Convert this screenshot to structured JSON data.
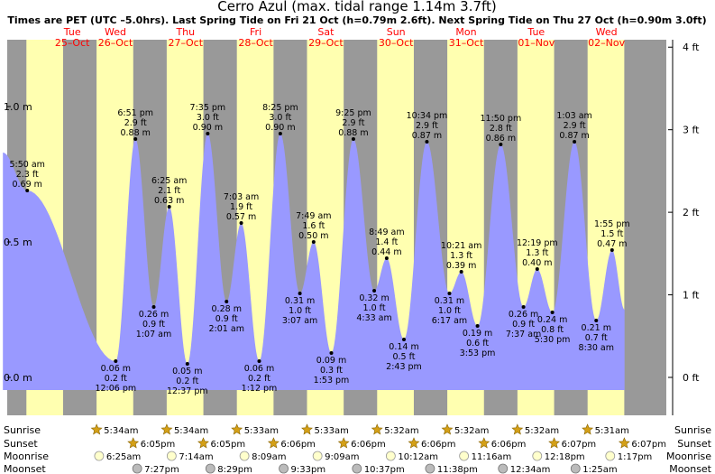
{
  "title": "Cerro Azul (max. tidal range 1.14m 3.7ft)",
  "subtitle": "Times are PET (UTC –5.0hrs). Last Spring Tide on Fri 21 Oct (h=0.79m 2.6ft). Next Spring Tide on Thu 27 Oct (h=0.90m 3.0ft)",
  "colors": {
    "night": "#999999",
    "day": "#ffffb0",
    "tide_fill": "#9999ff",
    "date_text": "#ff0000",
    "label_text": "#000000"
  },
  "days": [
    {
      "dow": "Tue",
      "date": "25–Oct"
    },
    {
      "dow": "Wed",
      "date": "26–Oct"
    },
    {
      "dow": "Thu",
      "date": "27–Oct"
    },
    {
      "dow": "Fri",
      "date": "28–Oct"
    },
    {
      "dow": "Sat",
      "date": "29–Oct"
    },
    {
      "dow": "Sun",
      "date": "30–Oct"
    },
    {
      "dow": "Mon",
      "date": "31–Oct"
    },
    {
      "dow": "Tue",
      "date": "01–Nov"
    },
    {
      "dow": "Wed",
      "date": "02–Nov"
    }
  ],
  "chart_data": {
    "type": "area",
    "title": "Cerro Azul (max. tidal range 1.14m 3.7ft)",
    "y_left_ticks": [
      "0.0 m",
      "0.5 m",
      "1.0 m"
    ],
    "y_left_tick_values": [
      0.0,
      0.5,
      1.0
    ],
    "y_right_ticks": [
      "0 ft",
      "1 ft",
      "2 ft",
      "3 ft",
      "4 ft"
    ],
    "y_right_tick_values": [
      0,
      1,
      2,
      3,
      4
    ],
    "ylim_m": [
      -0.15,
      1.22
    ],
    "x_start": "2022-10-25 00:00",
    "x_end": "2022-11-03 00:00",
    "grid": false,
    "tide_extremes": [
      {
        "day": 0,
        "time": "5:50 am",
        "ft": "2.3 ft",
        "m": "0.69 m",
        "value": 0.69,
        "type": "high"
      },
      {
        "day": 1,
        "time": "12:06 pm",
        "ft": "0.2 ft",
        "m": "0.06 m",
        "value": 0.06,
        "type": "low"
      },
      {
        "day": 1,
        "time": "6:51 pm",
        "ft": "2.9 ft",
        "m": "0.88 m",
        "value": 0.88,
        "type": "high"
      },
      {
        "day": 2,
        "time": "1:07 am",
        "ft": "0.9 ft",
        "m": "0.26 m",
        "value": 0.26,
        "type": "low"
      },
      {
        "day": 2,
        "time": "6:25 am",
        "ft": "2.1 ft",
        "m": "0.63 m",
        "value": 0.63,
        "type": "high"
      },
      {
        "day": 2,
        "time": "12:37 pm",
        "ft": "0.2 ft",
        "m": "0.05 m",
        "value": 0.05,
        "type": "low"
      },
      {
        "day": 2,
        "time": "7:35 pm",
        "ft": "3.0 ft",
        "m": "0.90 m",
        "value": 0.9,
        "type": "high"
      },
      {
        "day": 3,
        "time": "2:01 am",
        "ft": "0.9 ft",
        "m": "0.28 m",
        "value": 0.28,
        "type": "low"
      },
      {
        "day": 3,
        "time": "7:03 am",
        "ft": "1.9 ft",
        "m": "0.57 m",
        "value": 0.57,
        "type": "high"
      },
      {
        "day": 3,
        "time": "1:12 pm",
        "ft": "0.2 ft",
        "m": "0.06 m",
        "value": 0.06,
        "type": "low"
      },
      {
        "day": 3,
        "time": "8:25 pm",
        "ft": "3.0 ft",
        "m": "0.90 m",
        "value": 0.9,
        "type": "high"
      },
      {
        "day": 4,
        "time": "3:07 am",
        "ft": "1.0 ft",
        "m": "0.31 m",
        "value": 0.31,
        "type": "low"
      },
      {
        "day": 4,
        "time": "7:49 am",
        "ft": "1.6 ft",
        "m": "0.50 m",
        "value": 0.5,
        "type": "high"
      },
      {
        "day": 4,
        "time": "1:53 pm",
        "ft": "0.3 ft",
        "m": "0.09 m",
        "value": 0.09,
        "type": "low"
      },
      {
        "day": 4,
        "time": "9:25 pm",
        "ft": "2.9 ft",
        "m": "0.88 m",
        "value": 0.88,
        "type": "high"
      },
      {
        "day": 5,
        "time": "4:33 am",
        "ft": "1.0 ft",
        "m": "0.32 m",
        "value": 0.32,
        "type": "low"
      },
      {
        "day": 5,
        "time": "8:49 am",
        "ft": "1.4 ft",
        "m": "0.44 m",
        "value": 0.44,
        "type": "high"
      },
      {
        "day": 5,
        "time": "2:43 pm",
        "ft": "0.5 ft",
        "m": "0.14 m",
        "value": 0.14,
        "type": "low"
      },
      {
        "day": 5,
        "time": "10:34 pm",
        "ft": "2.9 ft",
        "m": "0.87 m",
        "value": 0.87,
        "type": "high"
      },
      {
        "day": 6,
        "time": "6:17 am",
        "ft": "1.0 ft",
        "m": "0.31 m",
        "value": 0.31,
        "type": "low"
      },
      {
        "day": 6,
        "time": "10:21 am",
        "ft": "1.3 ft",
        "m": "0.39 m",
        "value": 0.39,
        "type": "high"
      },
      {
        "day": 6,
        "time": "3:53 pm",
        "ft": "0.6 ft",
        "m": "0.19 m",
        "value": 0.19,
        "type": "low"
      },
      {
        "day": 6,
        "time": "11:50 pm",
        "ft": "2.8 ft",
        "m": "0.86 m",
        "value": 0.86,
        "type": "high"
      },
      {
        "day": 7,
        "time": "7:37 am",
        "ft": "0.9 ft",
        "m": "0.26 m",
        "value": 0.26,
        "type": "low"
      },
      {
        "day": 7,
        "time": "12:19 pm",
        "ft": "1.3 ft",
        "m": "0.40 m",
        "value": 0.4,
        "type": "high"
      },
      {
        "day": 7,
        "time": "5:30 pm",
        "ft": "0.8 ft",
        "m": "0.24 m",
        "value": 0.24,
        "type": "low"
      },
      {
        "day": 8,
        "time": "1:03 am",
        "ft": "2.9 ft",
        "m": "0.87 m",
        "value": 0.87,
        "type": "high"
      },
      {
        "day": 8,
        "time": "8:30 am",
        "ft": "0.7 ft",
        "m": "0.21 m",
        "value": 0.21,
        "type": "low"
      },
      {
        "day": 8,
        "time": "1:55 pm",
        "ft": "1.5 ft",
        "m": "0.47 m",
        "value": 0.47,
        "type": "high"
      }
    ]
  },
  "astro": {
    "row_labels": [
      "Sunrise",
      "Sunset",
      "Moonrise",
      "Moonset"
    ],
    "sunrise": [
      {
        "day": 1,
        "time": "5:34am"
      },
      {
        "day": 2,
        "time": "5:34am"
      },
      {
        "day": 3,
        "time": "5:33am"
      },
      {
        "day": 4,
        "time": "5:33am"
      },
      {
        "day": 5,
        "time": "5:32am"
      },
      {
        "day": 6,
        "time": "5:32am"
      },
      {
        "day": 7,
        "time": "5:32am"
      },
      {
        "day": 8,
        "time": "5:31am"
      }
    ],
    "sunset": [
      {
        "day": 1,
        "time": "6:05pm"
      },
      {
        "day": 2,
        "time": "6:05pm"
      },
      {
        "day": 3,
        "time": "6:06pm"
      },
      {
        "day": 4,
        "time": "6:06pm"
      },
      {
        "day": 5,
        "time": "6:06pm"
      },
      {
        "day": 6,
        "time": "6:06pm"
      },
      {
        "day": 7,
        "time": "6:07pm"
      },
      {
        "day": 8,
        "time": "6:07pm"
      }
    ],
    "moonrise": [
      {
        "day": 1,
        "time": "6:25am"
      },
      {
        "day": 2,
        "time": "7:14am"
      },
      {
        "day": 3,
        "time": "8:09am"
      },
      {
        "day": 4,
        "time": "9:09am"
      },
      {
        "day": 5,
        "time": "10:12am"
      },
      {
        "day": 6,
        "time": "11:16am"
      },
      {
        "day": 7,
        "time": "12:18pm"
      },
      {
        "day": 8,
        "time": "1:17pm"
      }
    ],
    "moonset": [
      {
        "day": 1,
        "time": "7:27pm"
      },
      {
        "day": 2,
        "time": "8:29pm"
      },
      {
        "day": 3,
        "time": "9:33pm"
      },
      {
        "day": 4,
        "time": "10:37pm"
      },
      {
        "day": 5,
        "time": "11:38pm"
      },
      {
        "day": 7,
        "time": "12:34am"
      },
      {
        "day": 8,
        "time": "1:25am"
      }
    ]
  }
}
